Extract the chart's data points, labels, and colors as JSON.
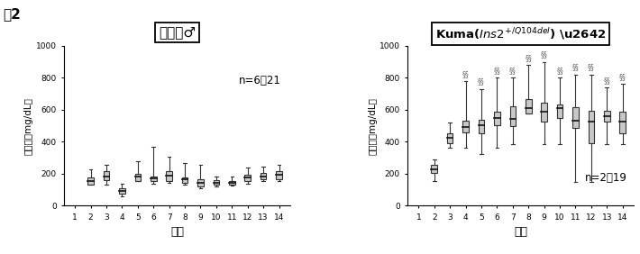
{
  "left_title": "野生型♂",
  "fig_label": "図2",
  "left_n_label": "n=6～21",
  "right_n_label": "n=2～19",
  "xlabel": "週齢",
  "ylabel": "血糖値（mg/dL）",
  "ylim": [
    0,
    1000
  ],
  "yticks": [
    0,
    200,
    400,
    600,
    800,
    1000
  ],
  "xticks": [
    1,
    2,
    3,
    4,
    5,
    6,
    7,
    8,
    9,
    10,
    11,
    12,
    13,
    14
  ],
  "box_color": "#c8c8c8",
  "box_edgecolor": "#333333",
  "whisker_color": "#333333",
  "median_color": "#111111",
  "left_boxes": {
    "weeks": [
      2,
      3,
      4,
      5,
      6,
      7,
      8,
      9,
      10,
      11,
      12,
      13,
      14
    ],
    "q1": [
      130,
      160,
      75,
      155,
      155,
      155,
      145,
      120,
      130,
      130,
      155,
      165,
      165
    ],
    "median": [
      155,
      185,
      90,
      180,
      170,
      190,
      165,
      145,
      145,
      145,
      175,
      185,
      195
    ],
    "q3": [
      175,
      215,
      110,
      200,
      185,
      215,
      175,
      165,
      160,
      155,
      195,
      205,
      215
    ],
    "whislo": [
      130,
      130,
      60,
      155,
      140,
      145,
      130,
      110,
      120,
      125,
      140,
      155,
      155
    ],
    "whishi": [
      230,
      255,
      140,
      280,
      370,
      305,
      265,
      255,
      185,
      185,
      240,
      245,
      255
    ]
  },
  "right_boxes": {
    "weeks": [
      2,
      3,
      4,
      5,
      6,
      7,
      8,
      9,
      10,
      11,
      12,
      13,
      14
    ],
    "q1": [
      205,
      390,
      460,
      450,
      505,
      500,
      575,
      525,
      550,
      485,
      390,
      525,
      455
    ],
    "median": [
      230,
      425,
      490,
      505,
      550,
      540,
      610,
      590,
      610,
      530,
      525,
      560,
      525
    ],
    "q3": [
      255,
      450,
      530,
      535,
      585,
      620,
      665,
      645,
      635,
      615,
      595,
      595,
      585
    ],
    "whislo": [
      155,
      365,
      365,
      325,
      365,
      385,
      575,
      385,
      385,
      150,
      150,
      385,
      385
    ],
    "whishi": [
      290,
      520,
      780,
      730,
      800,
      800,
      880,
      900,
      800,
      820,
      820,
      740,
      760
    ]
  },
  "right_sig_weeks": [
    4,
    5,
    6,
    7,
    8,
    9,
    10,
    11,
    12,
    13,
    14
  ],
  "box_width": 0.38
}
